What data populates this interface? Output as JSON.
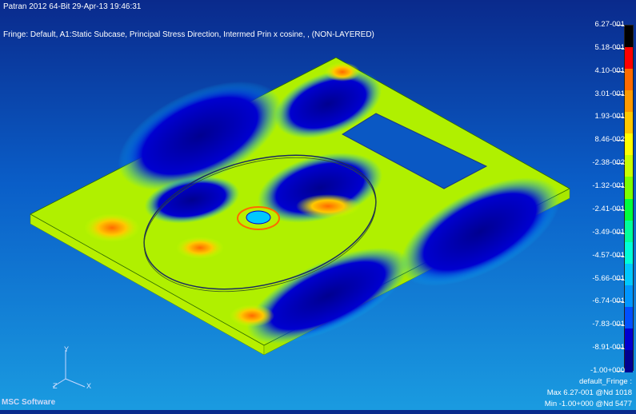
{
  "header": {
    "title": "Patran 2012 64-Bit 29-Apr-13 19:46:31",
    "fringe_desc": "Fringe: Default, A1:Static Subcase, Principal Stress Direction, Intermed Prin x cosine, , (NON-LAYERED)"
  },
  "legend": {
    "labels": [
      "6.27-001",
      "5.18-001",
      "4.10-001",
      "3.01-001",
      "1.93-001",
      "8.46-002",
      "-2.38-002",
      "-1.32-001",
      "-2.41-001",
      "-3.49-001",
      "-4.57-001",
      "-5.66-001",
      "-6.74-001",
      "-7.83-001",
      "-8.91-001",
      "-1.00+000"
    ],
    "colors": [
      "#000000",
      "#ff0000",
      "#ff6a00",
      "#ff9a00",
      "#ffc800",
      "#ffff00",
      "#c8ff00",
      "#7cff00",
      "#00ff3c",
      "#00ff9a",
      "#00ffd8",
      "#00c8ff",
      "#0096ff",
      "#0050ff",
      "#0000d0",
      "#000090"
    ]
  },
  "info": {
    "name": "default_Fringe :",
    "max": "Max 6.27-001 @Nd 1018",
    "min": "Min -1.00+000 @Nd 5477"
  },
  "triad": {
    "x": "X",
    "y": "Y",
    "z": "Z"
  },
  "logo": "MSC Software"
}
